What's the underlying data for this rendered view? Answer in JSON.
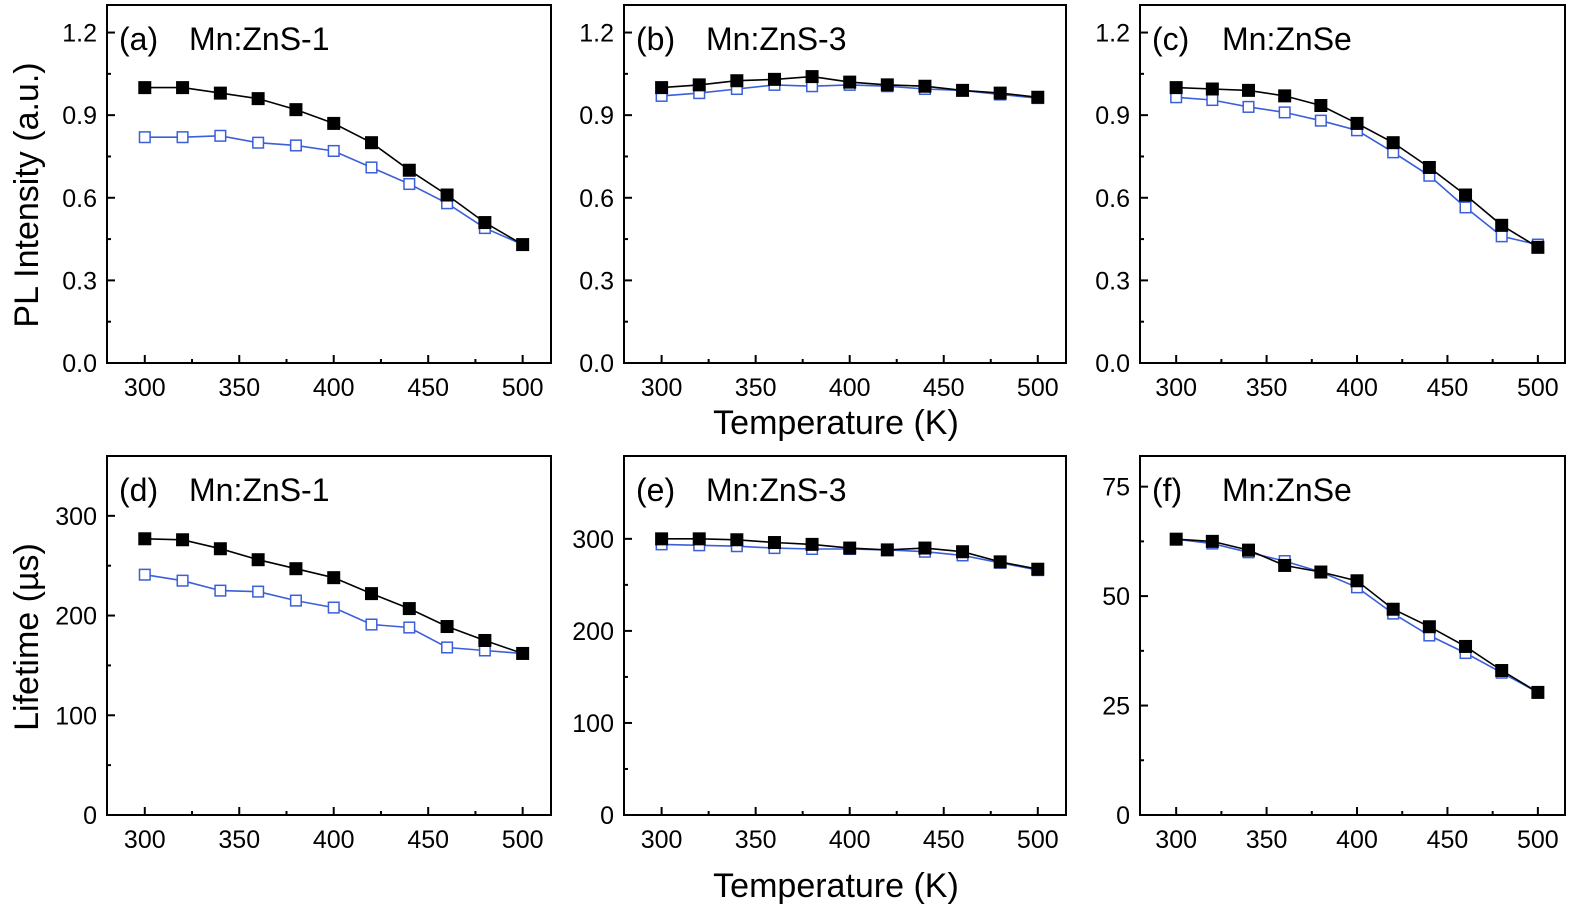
{
  "figure": {
    "row_ylabels": [
      "PL Intensity (a.u.)",
      "Lifetime (µs)"
    ],
    "row_xlabels": [
      "Temperature (K)",
      "Temperature (K)"
    ]
  },
  "chart_data": [
    {
      "type": "line",
      "panel": "(a)",
      "title": "Mn:ZnS-1",
      "xlabel": "",
      "ylabel": "PL Intensity (a.u.)",
      "xlim": [
        280,
        515
      ],
      "ylim": [
        0,
        1.3
      ],
      "xticks": [
        300,
        350,
        400,
        450,
        500
      ],
      "yticks": [
        0.0,
        0.3,
        0.6,
        0.9,
        1.2
      ],
      "ytick_labels": [
        "0.0",
        "0.3",
        "0.6",
        "0.9",
        "1.2"
      ],
      "x": [
        300,
        320,
        340,
        360,
        380,
        400,
        420,
        440,
        460,
        480,
        500
      ],
      "series": [
        {
          "marker": "filled-square",
          "color": "#000000",
          "values": [
            1.0,
            1.0,
            0.98,
            0.96,
            0.92,
            0.87,
            0.8,
            0.7,
            0.61,
            0.51,
            0.43
          ]
        },
        {
          "marker": "open-square",
          "color": "#3a5fd9",
          "values": [
            0.82,
            0.82,
            0.825,
            0.8,
            0.79,
            0.77,
            0.71,
            0.65,
            0.58,
            0.49,
            0.43
          ]
        }
      ]
    },
    {
      "type": "line",
      "panel": "(b)",
      "title": "Mn:ZnS-3",
      "xlabel": "",
      "ylabel": "",
      "xlim": [
        280,
        515
      ],
      "ylim": [
        0,
        1.3
      ],
      "xticks": [
        300,
        350,
        400,
        450,
        500
      ],
      "yticks": [
        0.0,
        0.3,
        0.6,
        0.9,
        1.2
      ],
      "ytick_labels": [
        "0.0",
        "0.3",
        "0.6",
        "0.9",
        "1.2"
      ],
      "x": [
        300,
        320,
        340,
        360,
        380,
        400,
        420,
        440,
        460,
        480,
        500
      ],
      "series": [
        {
          "marker": "filled-square",
          "color": "#000000",
          "values": [
            1.0,
            1.01,
            1.025,
            1.03,
            1.04,
            1.02,
            1.01,
            1.005,
            0.99,
            0.98,
            0.965
          ]
        },
        {
          "marker": "open-square",
          "color": "#3a5fd9",
          "values": [
            0.97,
            0.98,
            0.995,
            1.01,
            1.005,
            1.01,
            1.005,
            0.995,
            0.99,
            0.975,
            0.962
          ]
        }
      ]
    },
    {
      "type": "line",
      "panel": "(c)",
      "title": "Mn:ZnSe",
      "xlabel": "",
      "ylabel": "",
      "xlim": [
        280,
        515
      ],
      "ylim": [
        0,
        1.3
      ],
      "xticks": [
        300,
        350,
        400,
        450,
        500
      ],
      "yticks": [
        0.0,
        0.3,
        0.6,
        0.9,
        1.2
      ],
      "ytick_labels": [
        "0.0",
        "0.3",
        "0.6",
        "0.9",
        "1.2"
      ],
      "x": [
        300,
        320,
        340,
        360,
        380,
        400,
        420,
        440,
        460,
        480,
        500
      ],
      "series": [
        {
          "marker": "filled-square",
          "color": "#000000",
          "values": [
            1.0,
            0.995,
            0.99,
            0.97,
            0.935,
            0.87,
            0.8,
            0.71,
            0.61,
            0.5,
            0.42
          ]
        },
        {
          "marker": "open-square",
          "color": "#3a5fd9",
          "values": [
            0.965,
            0.955,
            0.93,
            0.91,
            0.88,
            0.845,
            0.765,
            0.68,
            0.565,
            0.46,
            0.43
          ]
        }
      ]
    },
    {
      "type": "line",
      "panel": "(d)",
      "title": "Mn:ZnS-1",
      "xlabel": "",
      "ylabel": "Lifetime (µs)",
      "xlim": [
        280,
        515
      ],
      "ylim": [
        0,
        360
      ],
      "xticks": [
        300,
        350,
        400,
        450,
        500
      ],
      "yticks": [
        0,
        100,
        200,
        300
      ],
      "ytick_labels": [
        "0",
        "100",
        "200",
        "300"
      ],
      "x": [
        300,
        320,
        340,
        360,
        380,
        400,
        420,
        440,
        460,
        480,
        500
      ],
      "series": [
        {
          "marker": "filled-square",
          "color": "#000000",
          "values": [
            277,
            276,
            267,
            256,
            247,
            238,
            222,
            207,
            189,
            175,
            162
          ]
        },
        {
          "marker": "open-square",
          "color": "#3a5fd9",
          "values": [
            241,
            235,
            225,
            224,
            215,
            208,
            191,
            188,
            168,
            165,
            162
          ]
        }
      ]
    },
    {
      "type": "line",
      "panel": "(e)",
      "title": "Mn:ZnS-3",
      "xlabel": "",
      "ylabel": "",
      "xlim": [
        280,
        515
      ],
      "ylim": [
        0,
        390
      ],
      "xticks": [
        300,
        350,
        400,
        450,
        500
      ],
      "yticks": [
        0,
        100,
        200,
        300
      ],
      "ytick_labels": [
        "0",
        "100",
        "200",
        "300"
      ],
      "x": [
        300,
        320,
        340,
        360,
        380,
        400,
        420,
        440,
        460,
        480,
        500
      ],
      "series": [
        {
          "marker": "filled-square",
          "color": "#000000",
          "values": [
            300,
            300,
            299,
            296,
            294,
            290,
            288,
            290,
            286,
            275,
            267
          ]
        },
        {
          "marker": "open-square",
          "color": "#3a5fd9",
          "values": [
            294,
            293,
            292,
            290,
            289,
            289,
            288,
            286,
            282,
            274,
            266
          ]
        }
      ]
    },
    {
      "type": "line",
      "panel": "(f)",
      "title": "Mn:ZnSe",
      "xlabel": "",
      "ylabel": "",
      "xlim": [
        280,
        515
      ],
      "ylim": [
        0,
        82
      ],
      "xticks": [
        300,
        350,
        400,
        450,
        500
      ],
      "yticks": [
        0,
        25,
        50,
        75
      ],
      "ytick_labels": [
        "0",
        "25",
        "50",
        "75"
      ],
      "x": [
        300,
        320,
        340,
        360,
        380,
        400,
        420,
        440,
        460,
        480,
        500
      ],
      "series": [
        {
          "marker": "filled-square",
          "color": "#000000",
          "values": [
            63,
            62.5,
            60.5,
            57,
            55.5,
            53.5,
            47,
            43,
            38.5,
            33,
            28
          ]
        },
        {
          "marker": "open-square",
          "color": "#3a5fd9",
          "values": [
            63,
            62,
            60,
            58,
            55.5,
            52,
            46,
            41,
            37,
            32.5,
            28
          ]
        }
      ]
    }
  ]
}
